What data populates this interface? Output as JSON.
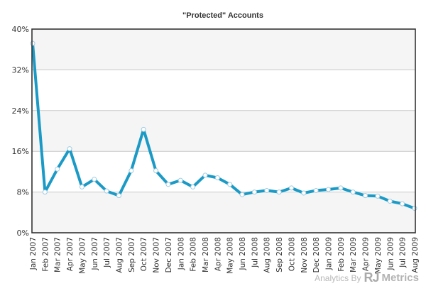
{
  "chart_data": {
    "type": "line",
    "title": "\"Protected\" Accounts",
    "xlabel": "",
    "ylabel": "",
    "ylim": [
      0,
      40
    ],
    "y_ticks": [
      0,
      8,
      16,
      24,
      32,
      40
    ],
    "y_tick_labels": [
      "0%",
      "8%",
      "16%",
      "24%",
      "32%",
      "40%"
    ],
    "grid": true,
    "legend": "none",
    "categories": [
      "Jan 2007",
      "Feb 2007",
      "Mar 2007",
      "Apr 2007",
      "May 2007",
      "Jun 2007",
      "Jul 2007",
      "Aug 2007",
      "Sep 2007",
      "Oct 2007",
      "Nov 2007",
      "Dec 2007",
      "Jan 2008",
      "Feb 2008",
      "Mar 2008",
      "Apr 2008",
      "May 2008",
      "Jun 2008",
      "Jul 2008",
      "Aug 2008",
      "Sep 2008",
      "Oct 2008",
      "Nov 2008",
      "Dec 2008",
      "Jan 2009",
      "Feb 2009",
      "Mar 2009",
      "Apr 2009",
      "May 2009",
      "Jun 2009",
      "Jul 2009",
      "Aug 2009"
    ],
    "series": [
      {
        "values": [
          37.2,
          8.0,
          12.5,
          16.5,
          9.0,
          10.5,
          8.2,
          7.3,
          12.2,
          20.3,
          12.2,
          9.5,
          10.3,
          9.0,
          11.3,
          10.8,
          9.5,
          7.5,
          8.0,
          8.3,
          8.0,
          8.8,
          7.8,
          8.3,
          8.5,
          8.8,
          8.0,
          7.3,
          7.2,
          6.2,
          5.7,
          4.8
        ]
      }
    ]
  },
  "colors": {
    "line": "#1b9ac6",
    "marker_fill": "#ffffff",
    "marker_stroke": "#9fcbe0",
    "band": "#f5f5f5",
    "grid": "#c8c8c8",
    "axis": "#333333"
  },
  "watermark": {
    "prefix": "Analytics By",
    "brand_initials": "RJ",
    "brand_name": "Metrics"
  }
}
